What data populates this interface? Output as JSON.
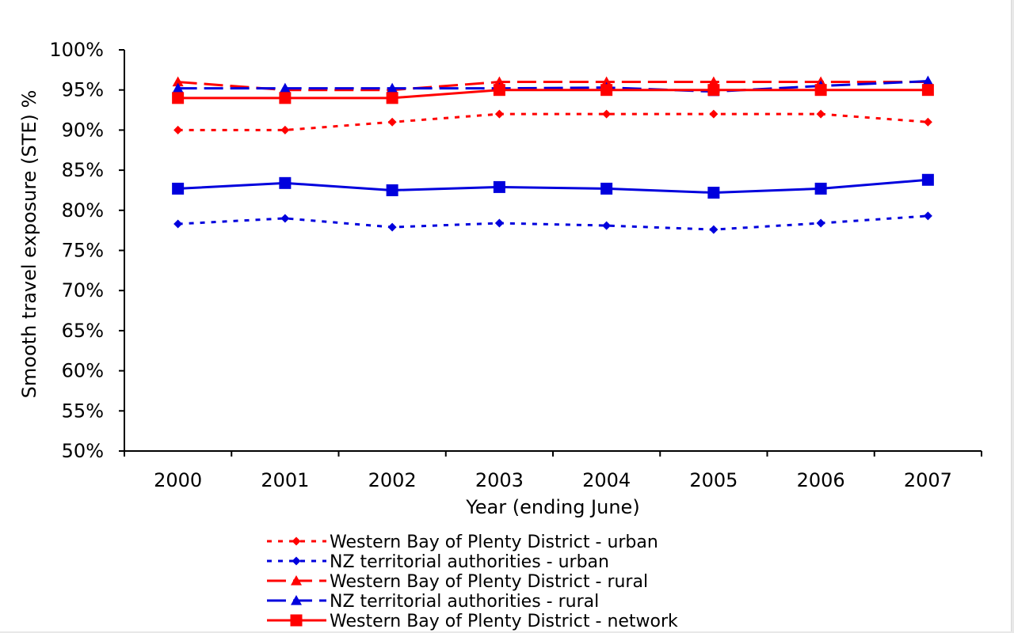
{
  "chart_data": {
    "type": "line",
    "title": "",
    "xlabel": "Year (ending June)",
    "ylabel": "Smooth travel exposure (STE) %",
    "categories": [
      "2000",
      "2001",
      "2002",
      "2003",
      "2004",
      "2005",
      "2006",
      "2007"
    ],
    "ylim": [
      50,
      100
    ],
    "yticks": [
      50,
      55,
      60,
      65,
      70,
      75,
      80,
      85,
      90,
      95,
      100
    ],
    "ytick_labels": [
      "50%",
      "55%",
      "60%",
      "65%",
      "70%",
      "75%",
      "80%",
      "85%",
      "90%",
      "95%",
      "100%"
    ],
    "grid": false,
    "legend_position": "bottom",
    "series": [
      {
        "name": "Western Bay of Plenty District - urban",
        "values": [
          90,
          90,
          91,
          92,
          92,
          92,
          92,
          91
        ],
        "color": "#ff0000",
        "line": "dotted",
        "marker": "diamond"
      },
      {
        "name": "NZ territorial authorities - urban",
        "values": [
          78.3,
          79,
          77.9,
          78.4,
          78.1,
          77.6,
          78.4,
          79.3
        ],
        "color": "#0000dd",
        "line": "dotted",
        "marker": "diamond"
      },
      {
        "name": "Western Bay of Plenty District - rural",
        "values": [
          96,
          95,
          95,
          96,
          96,
          96,
          96,
          96
        ],
        "color": "#ff0000",
        "line": "dashed",
        "marker": "triangle"
      },
      {
        "name": "NZ territorial authorities - rural",
        "values": [
          95.2,
          95.2,
          95.2,
          95.2,
          95.3,
          94.8,
          95.5,
          96.1
        ],
        "color": "#0000dd",
        "line": "dashed",
        "marker": "triangle"
      },
      {
        "name": "Western Bay of Plenty District - network",
        "values": [
          94,
          94,
          94,
          95,
          95,
          95,
          95,
          95
        ],
        "color": "#ff0000",
        "line": "solid",
        "marker": "square"
      },
      {
        "name": "",
        "values": [
          82.7,
          83.4,
          82.5,
          82.9,
          82.7,
          82.2,
          82.7,
          83.8
        ],
        "color": "#0000dd",
        "line": "solid",
        "marker": "square"
      }
    ]
  }
}
